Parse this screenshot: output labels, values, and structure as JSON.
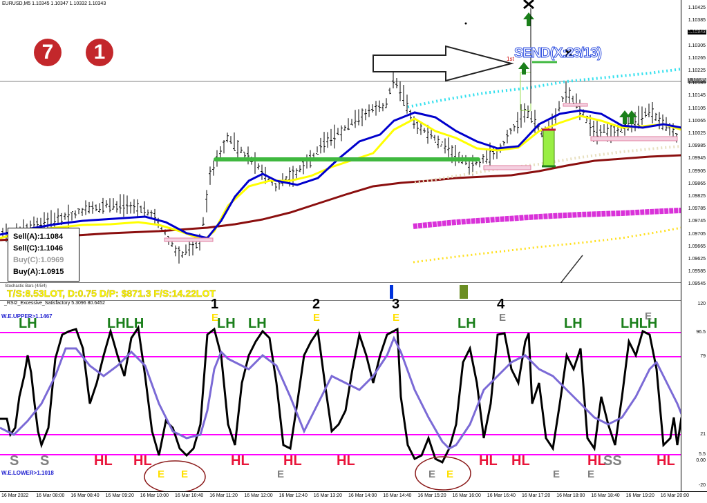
{
  "main_chart": {
    "symbol_header": "EURUSD,M5  1.10345 1.10347 1.10332 1.10343",
    "price_labels": [
      "1.10425",
      "1.10385",
      "1.10343",
      "1.10305",
      "1.10265",
      "1.10225",
      "1.10185",
      "1.10145",
      "1.10105",
      "1.10065",
      "1.10025",
      "1.09985",
      "1.09945",
      "1.09905",
      "1.09865",
      "1.09825",
      "1.09785",
      "1.09745",
      "1.09705",
      "1.09665",
      "1.09625",
      "1.09585",
      "1.09545"
    ],
    "current_price": "1.10343",
    "horizontal_line_price": "1.10185",
    "badges": [
      "7",
      "1"
    ],
    "send_label": "SEND(X:23/13)",
    "sub_label": "1st"
  },
  "info_box": {
    "sell_a": "Sell(A):1.1084",
    "sell_c": "Sell(C):1.1046",
    "buy_c": "Buy(C):1.0969",
    "buy_a": "Buy(A):1.0915"
  },
  "status_bar": {
    "indicator_name": "Stochastic Bars (4/5/4)",
    "lot_text": "T/S:8.53LOT, D:0.75 D/P: $871.3 F/S:14.22LOT"
  },
  "indicator": {
    "title": "_RSI2_Excessive_Satisfactory 5.3096 80.6452",
    "upper_label": "W.E.UPPER>1.1467",
    "lower_label": "W.E.LOWER>1.1018",
    "level_labels": [
      "120",
      "96.5",
      "79",
      "21",
      "5.5",
      "0.00",
      "-20"
    ],
    "numbers": [
      "1",
      "2",
      "3",
      "4"
    ],
    "top_signals": [
      "LH",
      "LHLH",
      "LH",
      "LH",
      "LH",
      "LH",
      "LHLH"
    ],
    "bottom_signals": [
      "S",
      "S",
      "HL",
      "HL",
      "HL",
      "HL",
      "HL",
      "HL",
      "HL",
      "HL",
      "SS",
      "HL"
    ],
    "e_markers": [
      "E",
      "E",
      "E",
      "E",
      "E",
      "E",
      "E",
      "E",
      "E",
      "E",
      "E"
    ]
  },
  "time_axis": [
    "16 Mar 2022",
    "16 Mar 08:00",
    "16 Mar 08:40",
    "16 Mar 09:20",
    "16 Mar 10:00",
    "16 Mar 10:40",
    "16 Mar 11:20",
    "16 Mar 12:00",
    "16 Mar 12:40",
    "16 Mar 13:20",
    "16 Mar 14:00",
    "16 Mar 14:40",
    "16 Mar 15:20",
    "16 Mar 16:00",
    "16 Mar 16:40",
    "16 Mar 17:20",
    "16 Mar 18:00",
    "16 Mar 18:40",
    "16 Mar 19:20",
    "16 Mar 20:00"
  ],
  "colors": {
    "badge": "#c3272b",
    "signal_green": "#1a7f1a",
    "signal_red": "#e8153a",
    "signal_grey": "#808080",
    "level_magenta": "#ff00ff",
    "rsi_purple": "#7b6ad6",
    "lot_yellow": "#ffff00"
  }
}
